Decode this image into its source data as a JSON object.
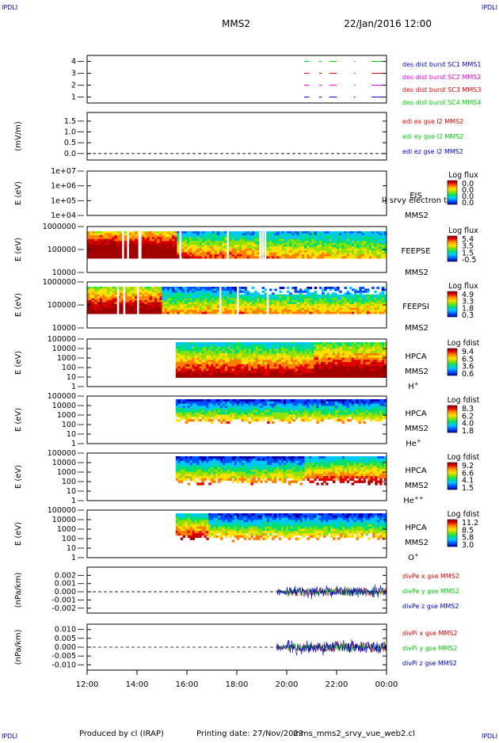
{
  "header": {
    "corner_label": "IPDLI",
    "title": "MMS2",
    "datetime": "22/Jan/2016 12:00"
  },
  "footer": {
    "produced_by": "Produced by cl (IRAP)",
    "printing_date": "Printing date: 27/Nov/2023",
    "script_name": "mms_mms2_srvy_vue_web2.cl"
  },
  "colors": {
    "red": "#dd0000",
    "green": "#00cc00",
    "blue": "#0000cc",
    "magenta": "#dd00dd",
    "colorbar": [
      "#0000aa",
      "#0050ff",
      "#00c8ff",
      "#00e070",
      "#90e000",
      "#ffe000",
      "#ff8000",
      "#e00000",
      "#a00000"
    ]
  },
  "time_axis": {
    "ticks": [
      "12:00",
      "14:00",
      "16:00",
      "18:00",
      "20:00",
      "22:00",
      "00:00"
    ],
    "range_hours": [
      12,
      24
    ]
  },
  "chart_data": [
    {
      "id": "burst",
      "type": "line",
      "ylabel": "",
      "yticks": [
        "1",
        "2",
        "3",
        "4"
      ],
      "ylim": [
        0.5,
        4.5
      ],
      "legend": [
        {
          "text": "des dist burst SC1 MMS1",
          "color": "#0000cc"
        },
        {
          "text": "des dist burst SC2 MMS2",
          "color": "#dd00dd"
        },
        {
          "text": "des dist burst SC3 MMS3",
          "color": "#dd0000"
        },
        {
          "text": "des dist burst SC4 MMS4",
          "color": "#00cc00"
        }
      ],
      "series": [
        {
          "sc": 4,
          "color": "#00cc00",
          "segments": [
            [
              20.7,
              20.9
            ],
            [
              21.3,
              21.4
            ],
            [
              21.7,
              22.0
            ],
            [
              22.7,
              22.75
            ],
            [
              23.4,
              23.85
            ]
          ]
        },
        {
          "sc": 3,
          "color": "#dd0000",
          "segments": [
            [
              20.7,
              20.9
            ],
            [
              21.3,
              21.4
            ],
            [
              21.7,
              22.0
            ],
            [
              22.7,
              22.75
            ],
            [
              23.4,
              23.85
            ]
          ]
        },
        {
          "sc": 2,
          "color": "#dd00dd",
          "segments": [
            [
              20.7,
              20.9
            ],
            [
              21.3,
              21.4
            ],
            [
              21.7,
              22.0
            ],
            [
              22.7,
              22.75
            ],
            [
              23.4,
              23.85
            ]
          ]
        },
        {
          "sc": 1,
          "color": "#0000cc",
          "segments": [
            [
              20.7,
              20.9
            ],
            [
              21.3,
              21.4
            ],
            [
              21.7,
              22.0
            ],
            [
              22.7,
              22.75
            ],
            [
              23.4,
              23.85
            ]
          ]
        }
      ]
    },
    {
      "id": "edi",
      "type": "line",
      "ylabel": "(mV/m)",
      "yticks": [
        "0.0",
        "0.5",
        "1.0",
        "1.5"
      ],
      "ylim": [
        -0.3,
        1.9
      ],
      "zero_line": true,
      "legend": [
        {
          "text": "edi ex gse l2 MMS2",
          "color": "#dd0000"
        },
        {
          "text": "edi ey gse l2 MMS2",
          "color": "#00cc00"
        },
        {
          "text": "edi ez gse l2 MMS2",
          "color": "#0000cc"
        }
      ]
    },
    {
      "id": "eis",
      "type": "heatmap",
      "ylabel": "E (eV)",
      "yticks": [
        "1e+04",
        "1e+05",
        "1e+06",
        "1e+07"
      ],
      "instrument": "EIS",
      "spacecraft": "MMS2",
      "overlay_text": "l) srvy electron to",
      "cbar_title": "Log flux",
      "cbar_ticks": [
        "0.0",
        "0.0",
        "0.0",
        "0.0"
      ]
    },
    {
      "id": "feepse",
      "type": "heatmap",
      "ylabel": "E (eV)",
      "yticks": [
        "10000",
        "100000",
        "1000000"
      ],
      "instrument": "FEEPSE",
      "spacecraft": "MMS2",
      "cbar_title": "Log flux",
      "cbar_ticks": [
        "5.4",
        "3.5",
        "1.5",
        "-0.5"
      ]
    },
    {
      "id": "feepsi",
      "type": "heatmap",
      "ylabel": "E (eV)",
      "yticks": [
        "10000",
        "100000",
        "1000000"
      ],
      "instrument": "FEEPSI",
      "spacecraft": "MMS2",
      "cbar_title": "Log flux",
      "cbar_ticks": [
        "4.9",
        "3.3",
        "1.8",
        "0.3"
      ]
    },
    {
      "id": "hpca_h",
      "type": "heatmap",
      "ylabel": "E (eV)",
      "yticks": [
        "1",
        "10",
        "100",
        "1000",
        "10000",
        "100000"
      ],
      "instrument": "HPCA",
      "spacecraft": "MMS2",
      "species": "H",
      "charge": "+",
      "cbar_title": "Log fdist",
      "cbar_ticks": [
        "9.4",
        "6.5",
        "3.6",
        "0.6"
      ]
    },
    {
      "id": "hpca_he1",
      "type": "heatmap",
      "ylabel": "E (eV)",
      "yticks": [
        "1",
        "10",
        "100",
        "1000",
        "10000",
        "100000"
      ],
      "instrument": "HPCA",
      "spacecraft": "MMS2",
      "species": "He",
      "charge": "+",
      "cbar_title": "Log fdist",
      "cbar_ticks": [
        "8.3",
        "6.2",
        "4.0",
        "1.8"
      ]
    },
    {
      "id": "hpca_he2",
      "type": "heatmap",
      "ylabel": "E (eV)",
      "yticks": [
        "1",
        "10",
        "100",
        "1000",
        "10000",
        "100000"
      ],
      "instrument": "HPCA",
      "spacecraft": "MMS2",
      "species": "He",
      "charge": "++",
      "cbar_title": "Log fdist",
      "cbar_ticks": [
        "9.2",
        "6.6",
        "4.1",
        "1.5"
      ]
    },
    {
      "id": "hpca_o",
      "type": "heatmap",
      "ylabel": "E (eV)",
      "yticks": [
        "1",
        "10",
        "100",
        "1000",
        "10000",
        "100000"
      ],
      "instrument": "HPCA",
      "spacecraft": "MMS2",
      "species": "O",
      "charge": "+",
      "cbar_title": "Log fdist",
      "cbar_ticks": [
        "11.2",
        "8.5",
        "5.8",
        "3.0"
      ]
    },
    {
      "id": "divpe",
      "type": "line",
      "ylabel": "(nPa/km)",
      "yticks": [
        "-0.002",
        "-0.001",
        "0.000",
        "0.001",
        "0.002"
      ],
      "ylim": [
        -0.0026,
        0.003
      ],
      "zero_line": true,
      "legend": [
        {
          "text": "divPe x gse MMS2",
          "color": "#dd0000"
        },
        {
          "text": "divPe y gse MMS2",
          "color": "#00cc00"
        },
        {
          "text": "divPe z gse MMS2",
          "color": "#0000cc"
        }
      ]
    },
    {
      "id": "divpi",
      "type": "line",
      "ylabel": "(nPa/km)",
      "yticks": [
        "-0.010",
        "-0.005",
        "0.000",
        "0.005",
        "0.010"
      ],
      "ylim": [
        -0.013,
        0.013
      ],
      "zero_line": true,
      "legend": [
        {
          "text": "divPi x gse MMS2",
          "color": "#dd0000"
        },
        {
          "text": "divPi y gse MMS2",
          "color": "#00cc00"
        },
        {
          "text": "divPi z gse MMS2",
          "color": "#0000cc"
        }
      ]
    }
  ]
}
